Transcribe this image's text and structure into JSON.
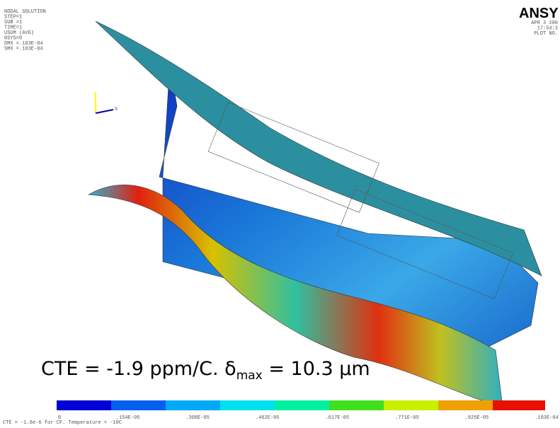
{
  "info": {
    "lines": [
      "NODAL SOLUTION",
      "STEP=1",
      "SUB =1",
      "TIME=1",
      "USUM      (AVG)",
      "RSYS=0",
      "DMX =.103E-04",
      "SMX =.103E-04"
    ]
  },
  "brand": {
    "logo": "ANSY",
    "lines": [
      "APR  3 200",
      "17:54:3",
      "PLOT NO."
    ]
  },
  "axis_label": "X",
  "caption": {
    "prefix": "CTE = -1.9 ppm/C. ",
    "symbol": "δ",
    "subscript": "max",
    "middle": " = 10.3 ",
    "unit": "μm"
  },
  "legend": {
    "labels": [
      "0",
      ".154E-05",
      ".308E-05",
      ".462E-05",
      ".617E-05",
      ".771E-05",
      ".925E-05",
      ".103E-04"
    ]
  },
  "footer": "CTE = -1.8e-6 for CF. Temperature = -10C"
}
